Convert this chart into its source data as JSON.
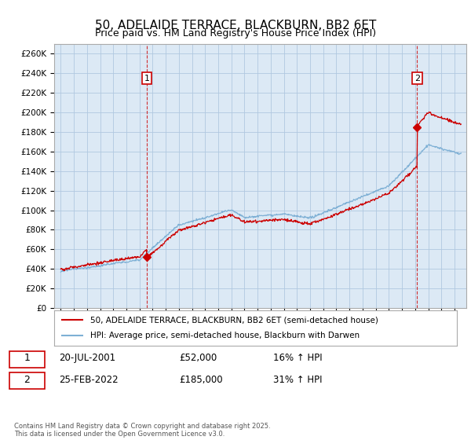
{
  "title": "50, ADELAIDE TERRACE, BLACKBURN, BB2 6ET",
  "subtitle": "Price paid vs. HM Land Registry's House Price Index (HPI)",
  "ylim": [
    0,
    270000
  ],
  "yticks": [
    0,
    20000,
    40000,
    60000,
    80000,
    100000,
    120000,
    140000,
    160000,
    180000,
    200000,
    220000,
    240000,
    260000
  ],
  "line1_color": "#cc0000",
  "line2_color": "#7eb0d5",
  "chart_bg": "#dce9f5",
  "sale1_year": 2001.55,
  "sale1_price": 52000,
  "sale1_label": "1",
  "sale2_year": 2022.15,
  "sale2_price": 185000,
  "sale2_label": "2",
  "legend_line1": "50, ADELAIDE TERRACE, BLACKBURN, BB2 6ET (semi-detached house)",
  "legend_line2": "HPI: Average price, semi-detached house, Blackburn with Darwen",
  "table_row1": [
    "1",
    "20-JUL-2001",
    "£52,000",
    "16% ↑ HPI"
  ],
  "table_row2": [
    "2",
    "25-FEB-2022",
    "£185,000",
    "31% ↑ HPI"
  ],
  "footer": "Contains HM Land Registry data © Crown copyright and database right 2025.\nThis data is licensed under the Open Government Licence v3.0.",
  "grid_color": "#b0c8e0",
  "title_fontsize": 11,
  "subtitle_fontsize": 9
}
